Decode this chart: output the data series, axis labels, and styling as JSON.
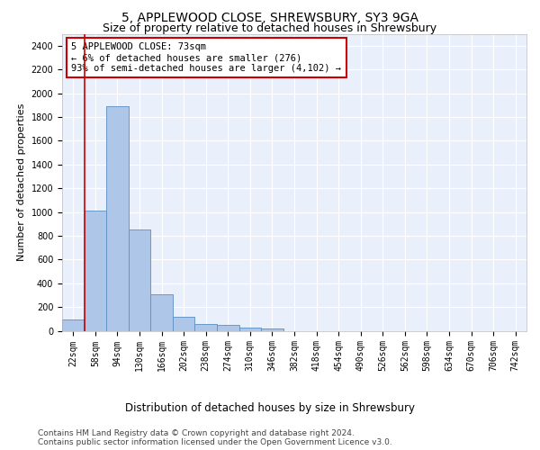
{
  "title": "5, APPLEWOOD CLOSE, SHREWSBURY, SY3 9GA",
  "subtitle": "Size of property relative to detached houses in Shrewsbury",
  "xlabel": "Distribution of detached houses by size in Shrewsbury",
  "ylabel": "Number of detached properties",
  "footer_line1": "Contains HM Land Registry data © Crown copyright and database right 2024.",
  "footer_line2": "Contains public sector information licensed under the Open Government Licence v3.0.",
  "bar_labels": [
    "22sqm",
    "58sqm",
    "94sqm",
    "130sqm",
    "166sqm",
    "202sqm",
    "238sqm",
    "274sqm",
    "310sqm",
    "346sqm",
    "382sqm",
    "418sqm",
    "454sqm",
    "490sqm",
    "526sqm",
    "562sqm",
    "598sqm",
    "634sqm",
    "670sqm",
    "706sqm",
    "742sqm"
  ],
  "bar_values": [
    95,
    1010,
    1890,
    855,
    310,
    115,
    60,
    50,
    30,
    20,
    0,
    0,
    0,
    0,
    0,
    0,
    0,
    0,
    0,
    0,
    0
  ],
  "bar_color": "#aec6e8",
  "bar_edge_color": "#5a8fc2",
  "background_color": "#eaf0fb",
  "grid_color": "#ffffff",
  "annotation_text": "5 APPLEWOOD CLOSE: 73sqm\n← 6% of detached houses are smaller (276)\n93% of semi-detached houses are larger (4,102) →",
  "annotation_box_color": "#ffffff",
  "annotation_box_edge_color": "#cc0000",
  "vline_color": "#cc0000",
  "ylim": [
    0,
    2500
  ],
  "yticks": [
    0,
    200,
    400,
    600,
    800,
    1000,
    1200,
    1400,
    1600,
    1800,
    2000,
    2200,
    2400
  ],
  "title_fontsize": 10,
  "subtitle_fontsize": 9,
  "xlabel_fontsize": 8.5,
  "ylabel_fontsize": 8,
  "tick_fontsize": 7,
  "annotation_fontsize": 7.5,
  "footer_fontsize": 6.5
}
